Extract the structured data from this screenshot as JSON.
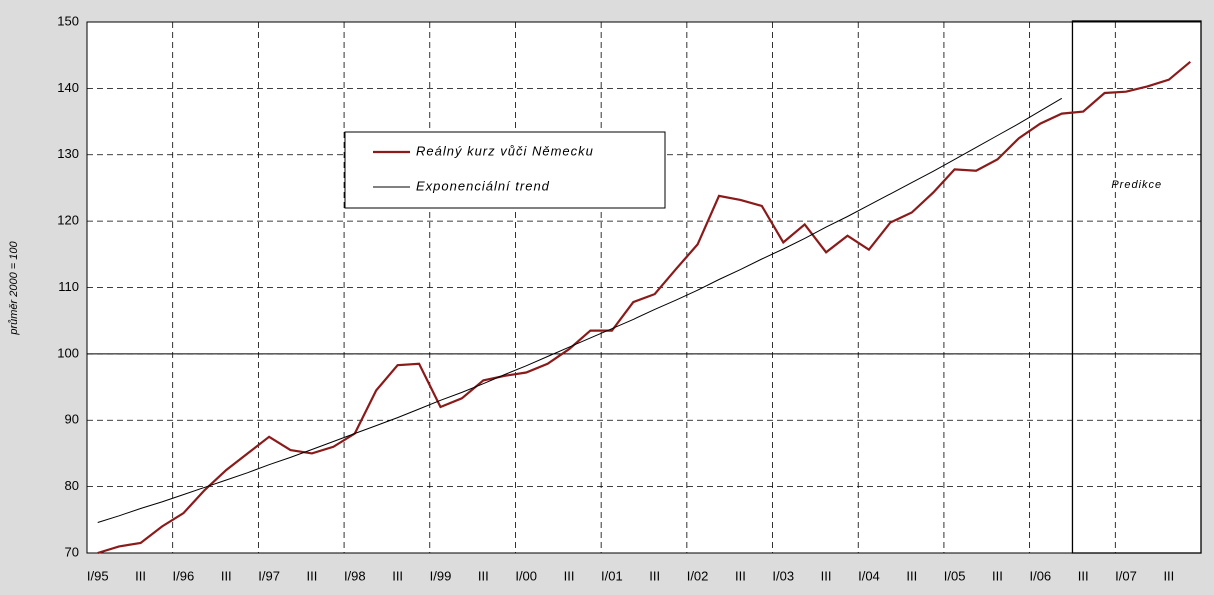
{
  "chart_data": {
    "type": "line",
    "y_label": "průměr 2000 = 100",
    "categories": [
      "I/95",
      null,
      "III",
      null,
      "I/96",
      null,
      "III",
      null,
      "I/97",
      null,
      "III",
      null,
      "I/98",
      null,
      "III",
      null,
      "I/99",
      null,
      "III",
      null,
      "I/00",
      null,
      "III",
      null,
      "I/01",
      null,
      "III",
      null,
      "I/02",
      null,
      "III",
      null,
      "I/03",
      null,
      "III",
      null,
      "I/04",
      null,
      "III",
      null,
      "I/05",
      null,
      "III",
      null,
      "I/06",
      null,
      "III",
      null,
      "I/07",
      null,
      "III",
      null
    ],
    "series": [
      {
        "name": "Reálný kurz vůči Německu",
        "color": "#8b1a1a",
        "values": [
          70,
          71,
          71.5,
          74,
          76,
          79.5,
          82.5,
          85,
          87.5,
          85.5,
          85,
          86,
          88,
          94.5,
          98.3,
          98.5,
          92,
          93.3,
          96,
          96.7,
          97.2,
          98.5,
          100.7,
          103.5,
          103.5,
          107.8,
          109,
          112.8,
          116.5,
          123.8,
          123.2,
          122.3,
          116.8,
          119.5,
          115.3,
          117.8,
          115.7,
          119.8,
          121.3,
          124.3,
          127.8,
          127.6,
          129.3,
          132.5,
          134.7,
          136.2,
          136.5,
          139.3,
          139.5,
          140.3,
          141.3,
          144
        ]
      },
      {
        "name": "Exponenciální trend",
        "color": "#000000",
        "values": [
          74.6,
          75.6,
          76.7,
          77.7,
          78.8,
          79.9,
          81.0,
          82.1,
          83.3,
          84.4,
          85.6,
          86.8,
          88.0,
          89.2,
          90.4,
          91.7,
          93.0,
          94.2,
          95.5,
          96.9,
          98.2,
          99.6,
          101.0,
          102.4,
          103.8,
          105.2,
          106.7,
          108.1,
          109.6,
          111.2,
          112.7,
          114.3,
          115.8,
          117.4,
          119.1,
          120.7,
          122.4,
          124.1,
          125.8,
          127.5,
          129.3,
          131.1,
          132.9,
          134.7,
          136.6,
          138.5,
          null,
          null,
          null,
          null,
          null,
          null
        ]
      }
    ],
    "ylim": [
      70,
      150
    ],
    "yticks": [
      70,
      80,
      90,
      100,
      110,
      120,
      130,
      140,
      150
    ],
    "reference_line": 100,
    "grid": true,
    "annotations": [
      {
        "text": "Predikce",
        "from_category": 46
      }
    ]
  }
}
